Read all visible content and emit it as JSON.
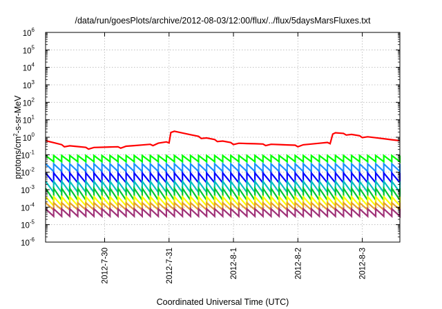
{
  "chart_data": {
    "type": "line",
    "title": "/data/run/goesPlots/archive/2012-08-03/12:00/flux/../flux/5daysMarsFluxes.txt",
    "xlabel": "Coordinated Universal Time (UTC)",
    "ylabel_parts": [
      "protons/cm",
      "2",
      "-s-sr-MeV"
    ],
    "y_scale": "log",
    "ylim": [
      1e-06,
      1000000.0
    ],
    "y_ticks": [
      {
        "base": "10",
        "exp": "-6",
        "value": 1e-06
      },
      {
        "base": "10",
        "exp": "-5",
        "value": 1e-05
      },
      {
        "base": "10",
        "exp": "-4",
        "value": 0.0001
      },
      {
        "base": "10",
        "exp": "-3",
        "value": 0.001
      },
      {
        "base": "10",
        "exp": "-2",
        "value": 0.01
      },
      {
        "base": "10",
        "exp": "-1",
        "value": 0.1
      },
      {
        "base": "10",
        "exp": "0",
        "value": 1
      },
      {
        "base": "10",
        "exp": "1",
        "value": 10
      },
      {
        "base": "10",
        "exp": "2",
        "value": 100
      },
      {
        "base": "10",
        "exp": "3",
        "value": 1000
      },
      {
        "base": "10",
        "exp": "4",
        "value": 10000
      },
      {
        "base": "10",
        "exp": "5",
        "value": 100000
      },
      {
        "base": "10",
        "exp": "6",
        "value": 1000000
      }
    ],
    "xlim": [
      "2012-07-29T02:00",
      "2012-08-03T14:00"
    ],
    "x_ticks": [
      {
        "label": "2012-7-30",
        "value": "2012-07-30T00:00"
      },
      {
        "label": "2012-7-31",
        "value": "2012-07-31T00:00"
      },
      {
        "label": "2012-8-1",
        "value": "2012-08-01T00:00"
      },
      {
        "label": "2012-8-2",
        "value": "2012-08-02T00:00"
      },
      {
        "label": "2012-8-3",
        "value": "2012-08-03T00:00"
      }
    ],
    "grid": true,
    "legend": "none",
    "sawtooth_period_hours": 3,
    "series": [
      {
        "color": "#ff0000",
        "style": "sawtooth",
        "peak_value": 0.45,
        "trough_value": 0.25,
        "x": [
          "2012-07-29T02:00",
          "2012-07-29T09:00",
          "2012-07-29T18:00",
          "2012-07-30T06:00",
          "2012-07-30T18:00",
          "2012-07-31T00:00",
          "2012-07-31T00:40",
          "2012-07-31T12:00",
          "2012-07-31T18:00",
          "2012-08-01T00:00",
          "2012-08-01T12:00",
          "2012-08-02T00:00",
          "2012-08-02T12:00",
          "2012-08-02T13:00",
          "2012-08-02T18:00",
          "2012-08-03T00:00",
          "2012-08-03T14:00"
        ],
        "y": [
          0.55,
          0.3,
          0.22,
          0.25,
          0.35,
          0.5,
          2.1,
          0.9,
          0.6,
          0.4,
          0.35,
          0.3,
          0.45,
          1.6,
          1.4,
          1.0,
          0.55
        ]
      },
      {
        "color": "#00ff00",
        "style": "sawtooth",
        "peak_value": 0.09,
        "trough_value": 0.04
      },
      {
        "color": "#1e90ff",
        "style": "sawtooth",
        "peak_value": 0.03,
        "trough_value": 0.011
      },
      {
        "color": "#0000ff",
        "style": "sawtooth",
        "peak_value": 0.009,
        "trough_value": 0.0025
      },
      {
        "color": "#00bfbf",
        "style": "sawtooth",
        "peak_value": 0.003,
        "trough_value": 0.0007
      },
      {
        "color": "#00c832",
        "style": "sawtooth",
        "peak_value": 0.0012,
        "trough_value": 0.00025
      },
      {
        "color": "#ffff00",
        "style": "sawtooth",
        "peak_value": 0.0004,
        "trough_value": 0.00012
      },
      {
        "color": "#e6a02a",
        "style": "sawtooth",
        "peak_value": 0.00018,
        "trough_value": 7e-05
      },
      {
        "color": "#a03278",
        "style": "sawtooth",
        "peak_value": 8e-05,
        "trough_value": 3e-05
      }
    ]
  }
}
